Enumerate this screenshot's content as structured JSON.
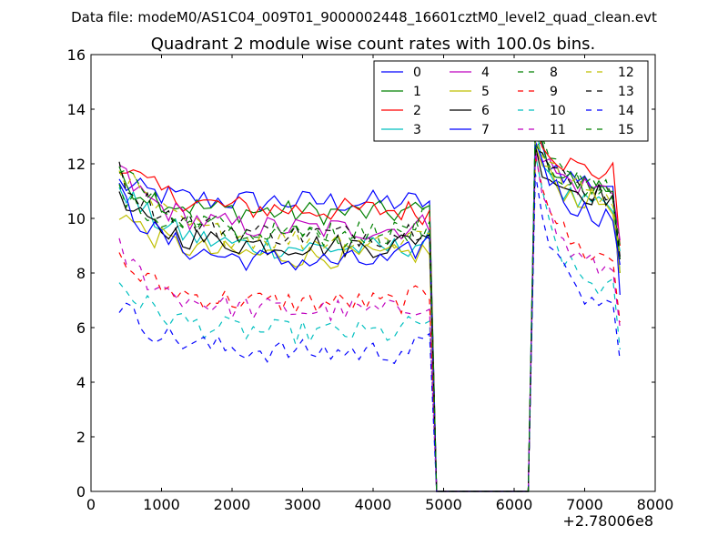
{
  "header": {
    "data_file": "Data file: modeM0/AS1C04_009T01_9000002448_16601cztM0_level2_quad_clean.evt"
  },
  "chart_data": {
    "type": "line",
    "title": "Quadrant 2 module wise count rates with 100.0s bins.",
    "xlabel": "",
    "ylabel": "",
    "x_offset_label": "+2.78006e8",
    "xlim": [
      0,
      8000
    ],
    "ylim": [
      0,
      16
    ],
    "x_ticks": [
      0,
      1000,
      2000,
      3000,
      4000,
      5000,
      6000,
      7000,
      8000
    ],
    "y_ticks": [
      0,
      2,
      4,
      6,
      8,
      10,
      12,
      14,
      16
    ],
    "x_tick_labels": [
      "0",
      "1000",
      "2000",
      "3000",
      "4000",
      "5000",
      "6000",
      "7000",
      "8000"
    ],
    "y_tick_labels": [
      "0",
      "2",
      "4",
      "6",
      "8",
      "10",
      "12",
      "14",
      "16"
    ],
    "legend_position": "top-right",
    "legend_columns": 4,
    "x_segment_a": {
      "start": 400,
      "step": 100,
      "count": 45
    },
    "x_segment_b": {
      "start": 6300,
      "step": 100,
      "count": 13
    },
    "gap": [
      4900,
      5000,
      6200
    ],
    "series": [
      {
        "name": "0",
        "color": "#0000ff",
        "dash": "solid",
        "level_a": 10.6,
        "level_b": 11.2,
        "start_a": 11.3,
        "end_a": 10.6,
        "start_b": 13.0,
        "end_b": 7.2
      },
      {
        "name": "1",
        "color": "#008000",
        "dash": "solid",
        "level_a": 10.2,
        "level_b": 11.0,
        "start_a": 11.5,
        "end_a": 10.3,
        "start_b": 13.0,
        "end_b": 8.0
      },
      {
        "name": "2",
        "color": "#ff0000",
        "dash": "solid",
        "level_a": 10.3,
        "level_b": 11.6,
        "start_a": 12.1,
        "end_a": 10.2,
        "start_b": 13.5,
        "end_b": 9.0
      },
      {
        "name": "3",
        "color": "#00bfbf",
        "dash": "solid",
        "level_a": 8.9,
        "level_b": 10.2,
        "start_a": 11.3,
        "end_a": 9.2,
        "start_b": 13.2,
        "end_b": 8.8
      },
      {
        "name": "4",
        "color": "#bf00bf",
        "dash": "solid",
        "level_a": 9.6,
        "level_b": 11.0,
        "start_a": 11.8,
        "end_a": 9.8,
        "start_b": 12.8,
        "end_b": 9.2
      },
      {
        "name": "5",
        "color": "#bfbf00",
        "dash": "solid",
        "level_a": 8.6,
        "level_b": 10.5,
        "start_a": 10.3,
        "end_a": 8.8,
        "start_b": 12.5,
        "end_b": 8.0
      },
      {
        "name": "6",
        "color": "#000000",
        "dash": "solid",
        "level_a": 9.0,
        "level_b": 10.8,
        "start_a": 10.6,
        "end_a": 9.5,
        "start_b": 12.4,
        "end_b": 8.5
      },
      {
        "name": "7",
        "color": "#0000ff",
        "dash": "solid",
        "level_a": 8.4,
        "level_b": 10.0,
        "start_a": 10.9,
        "end_a": 9.2,
        "start_b": 13.0,
        "end_b": 8.3
      },
      {
        "name": "8",
        "color": "#008000",
        "dash": "dashed",
        "level_a": 9.4,
        "level_b": 11.0,
        "start_a": 10.9,
        "end_a": 9.8,
        "start_b": 13.1,
        "end_b": 8.5
      },
      {
        "name": "9",
        "color": "#ff0000",
        "dash": "dashed",
        "level_a": 6.9,
        "level_b": 8.4,
        "start_a": 8.5,
        "end_a": 7.2,
        "start_b": 12.6,
        "end_b": 6.2
      },
      {
        "name": "10",
        "color": "#00bfbf",
        "dash": "dashed",
        "level_a": 5.8,
        "level_b": 7.3,
        "start_a": 7.7,
        "end_a": 6.3,
        "start_b": 12.0,
        "end_b": 5.2
      },
      {
        "name": "11",
        "color": "#bf00bf",
        "dash": "dashed",
        "level_a": 6.6,
        "level_b": 8.0,
        "start_a": 8.9,
        "end_a": 7.0,
        "start_b": 12.2,
        "end_b": 6.0
      },
      {
        "name": "12",
        "color": "#bfbf00",
        "dash": "dashed",
        "level_a": 9.2,
        "level_b": 10.8,
        "start_a": 12.0,
        "end_a": 9.6,
        "start_b": 13.1,
        "end_b": 8.6
      },
      {
        "name": "13",
        "color": "#000000",
        "dash": "dashed",
        "level_a": 9.4,
        "level_b": 10.9,
        "start_a": 11.7,
        "end_a": 9.8,
        "start_b": 12.9,
        "end_b": 8.6
      },
      {
        "name": "14",
        "color": "#0000ff",
        "dash": "dashed",
        "level_a": 5.1,
        "level_b": 6.6,
        "start_a": 6.9,
        "end_a": 5.4,
        "start_b": 11.8,
        "end_b": 4.8
      },
      {
        "name": "15",
        "color": "#008000",
        "dash": "dashed",
        "level_a": 9.5,
        "level_b": 11.0,
        "start_a": 12.1,
        "end_a": 10.0,
        "start_b": 13.2,
        "end_b": 9.0
      }
    ]
  }
}
